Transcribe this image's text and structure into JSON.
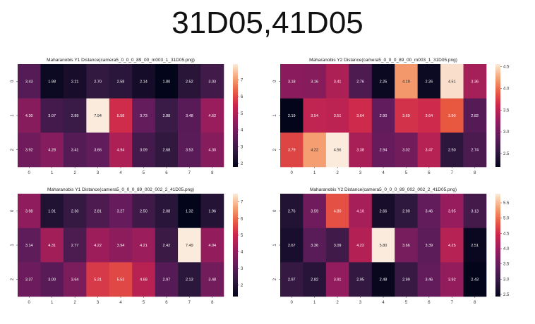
{
  "page_title": "31D05,41D05",
  "chart_data": [
    {
      "type": "heatmap",
      "title": "Maharanobis Y1 Distance(camera5_0_0_0_89_00_m003_1_31D05.png)",
      "x_categories": [
        "0",
        "1",
        "2",
        "3",
        "4",
        "5",
        "6",
        "7",
        "8"
      ],
      "y_categories": [
        "0",
        "1",
        "2"
      ],
      "values": [
        [
          3.43,
          1.98,
          2.21,
          2.7,
          2.58,
          2.14,
          1.8,
          2.52,
          3.03
        ],
        [
          4.3,
          3.07,
          2.89,
          7.94,
          5.58,
          3.73,
          2.88,
          3.48,
          4.62
        ],
        [
          3.92,
          4.28,
          3.41,
          3.66,
          4.94,
          3.09,
          2.68,
          3.53,
          4.3
        ]
      ],
      "colorbar_ticks": [
        2,
        3,
        4,
        5,
        6,
        7
      ],
      "vmin": 1.8,
      "vmax": 7.94,
      "colormap": "rocket"
    },
    {
      "type": "heatmap",
      "title": "Maharanobis Y2 Distance(camera5_0_0_0_89_00_m003_1_31D05.png)",
      "x_categories": [
        "0",
        "1",
        "2",
        "3",
        "4",
        "5",
        "6",
        "7",
        "8"
      ],
      "y_categories": [
        "0",
        "1",
        "2"
      ],
      "values": [
        [
          3.18,
          3.16,
          3.41,
          2.76,
          2.25,
          4.19,
          2.26,
          4.51,
          3.36
        ],
        [
          2.19,
          3.54,
          3.51,
          3.64,
          2.9,
          3.69,
          3.64,
          3.9,
          2.82
        ],
        [
          3.79,
          4.22,
          4.56,
          3.38,
          2.94,
          3.02,
          3.47,
          2.5,
          2.74
        ]
      ],
      "colorbar_ticks": [
        2.5,
        3.0,
        3.5,
        4.0,
        4.5
      ],
      "vmin": 2.19,
      "vmax": 4.56,
      "colormap": "rocket"
    },
    {
      "type": "heatmap",
      "title": "Maharanobis Y1 Distance(camera5_0_0_0_89_002_002_2_41D05.png)",
      "x_categories": [
        "0",
        "1",
        "2",
        "3",
        "4",
        "5",
        "6",
        "7",
        "8"
      ],
      "y_categories": [
        "0",
        "1",
        "2"
      ],
      "values": [
        [
          3.98,
          1.91,
          2.3,
          2.81,
          3.27,
          2.5,
          2.08,
          1.32,
          1.96
        ],
        [
          3.14,
          4.31,
          2.77,
          4.22,
          3.94,
          4.21,
          2.42,
          7.49,
          4.04
        ],
        [
          3.37,
          3.0,
          3.64,
          5.31,
          5.53,
          4.68,
          2.97,
          2.13,
          3.48
        ]
      ],
      "colorbar_ticks": [
        2,
        3,
        4,
        5,
        6,
        7
      ],
      "vmin": 1.32,
      "vmax": 7.49,
      "colormap": "rocket"
    },
    {
      "type": "heatmap",
      "title": "Maharanobis Y2 Distance(camera5_0_0_0_89_002_002_2_41D05.png)",
      "x_categories": [
        "0",
        "1",
        "2",
        "3",
        "4",
        "5",
        "6",
        "7",
        "8"
      ],
      "y_categories": [
        "0",
        "1",
        "2"
      ],
      "values": [
        [
          2.76,
          3.59,
          4.8,
          4.1,
          2.66,
          2.9,
          3.46,
          3.95,
          3.13
        ],
        [
          2.67,
          3.36,
          3.09,
          4.22,
          5.8,
          3.66,
          3.39,
          4.25,
          2.51
        ],
        [
          2.97,
          2.82,
          3.91,
          2.95,
          2.48,
          2.99,
          3.46,
          3.92,
          2.43
        ]
      ],
      "colorbar_ticks": [
        2.5,
        3.0,
        3.5,
        4.0,
        4.5,
        5.0,
        5.5
      ],
      "vmin": 2.43,
      "vmax": 5.8,
      "colormap": "rocket"
    }
  ]
}
